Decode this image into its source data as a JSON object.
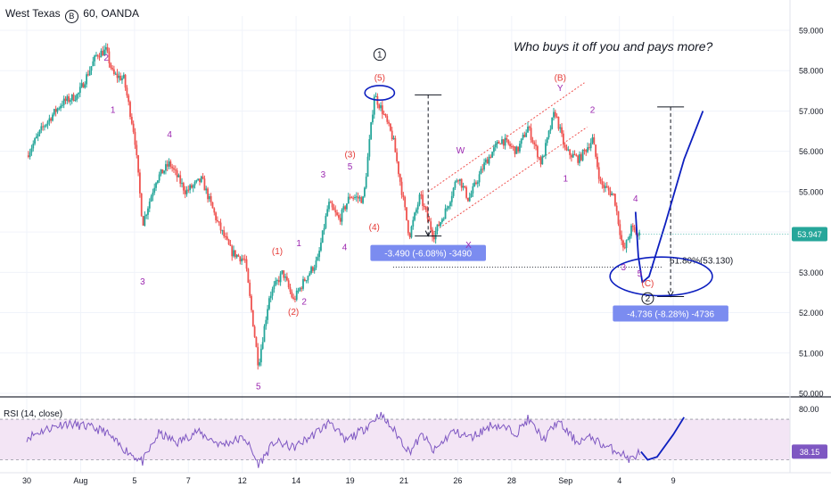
{
  "header": {
    "symbol": "West Texas",
    "icon": "b-circle-icon",
    "interval": "60",
    "source": "OANDA"
  },
  "annotation_text": "Who buys it off you and pays more?",
  "colors": {
    "up": "#26a69a",
    "down": "#ef5350",
    "wave_label": "#9c27b0",
    "corrective_label": "#e53935",
    "drawing": "#0d1fbf",
    "rsi_line": "#7e57c2",
    "rsi_band": "#f3e5f5",
    "last_price_bg": "#26a69a",
    "measure_bg": "#7b8cf0"
  },
  "chart_data": [
    {
      "type": "candlestick",
      "title": "",
      "xlabel": "",
      "ylabel": "",
      "ylim": [
        49.9,
        59.3
      ],
      "price_axis_ticks": [
        "59.000",
        "58.000",
        "57.000",
        "56.000",
        "55.000",
        "54.000",
        "53.000",
        "52.000",
        "51.000",
        "50.000"
      ],
      "time_axis_ticks": [
        "30",
        "Aug",
        "5",
        "7",
        "12",
        "14",
        "19",
        "21",
        "26",
        "28",
        "Sep",
        "4",
        "9"
      ],
      "last_price": "53.947",
      "path_anchors": [
        {
          "t": 0.0,
          "p": 55.9
        },
        {
          "t": 0.6,
          "p": 56.6
        },
        {
          "t": 1.3,
          "p": 57.2
        },
        {
          "t": 1.9,
          "p": 57.4
        },
        {
          "t": 2.6,
          "p": 58.4
        },
        {
          "t": 2.95,
          "p": 58.5
        },
        {
          "t": 3.2,
          "p": 57.9
        },
        {
          "t": 3.6,
          "p": 57.8
        },
        {
          "t": 4.0,
          "p": 56.4
        },
        {
          "t": 4.3,
          "p": 54.2
        },
        {
          "t": 4.8,
          "p": 55.3
        },
        {
          "t": 5.3,
          "p": 55.7
        },
        {
          "t": 5.9,
          "p": 55.0
        },
        {
          "t": 6.5,
          "p": 55.3
        },
        {
          "t": 7.1,
          "p": 54.2
        },
        {
          "t": 7.6,
          "p": 53.5
        },
        {
          "t": 8.1,
          "p": 53.3
        },
        {
          "t": 8.6,
          "p": 50.7
        },
        {
          "t": 9.0,
          "p": 52.4
        },
        {
          "t": 9.5,
          "p": 53.0
        },
        {
          "t": 9.9,
          "p": 52.3
        },
        {
          "t": 10.3,
          "p": 52.8
        },
        {
          "t": 10.8,
          "p": 53.3
        },
        {
          "t": 11.2,
          "p": 54.7
        },
        {
          "t": 11.6,
          "p": 54.3
        },
        {
          "t": 12.0,
          "p": 54.9
        },
        {
          "t": 12.5,
          "p": 54.8
        },
        {
          "t": 12.9,
          "p": 57.4
        },
        {
          "t": 13.2,
          "p": 57.0
        },
        {
          "t": 13.6,
          "p": 56.3
        },
        {
          "t": 14.2,
          "p": 53.9
        },
        {
          "t": 14.6,
          "p": 54.9
        },
        {
          "t": 15.1,
          "p": 53.9
        },
        {
          "t": 15.6,
          "p": 54.6
        },
        {
          "t": 16.0,
          "p": 55.4
        },
        {
          "t": 16.4,
          "p": 54.8
        },
        {
          "t": 17.0,
          "p": 55.7
        },
        {
          "t": 17.6,
          "p": 56.3
        },
        {
          "t": 18.2,
          "p": 56.0
        },
        {
          "t": 18.6,
          "p": 56.6
        },
        {
          "t": 19.1,
          "p": 55.7
        },
        {
          "t": 19.6,
          "p": 57.0
        },
        {
          "t": 20.0,
          "p": 56.0
        },
        {
          "t": 20.5,
          "p": 55.8
        },
        {
          "t": 21.0,
          "p": 56.3
        },
        {
          "t": 21.3,
          "p": 55.2
        },
        {
          "t": 21.8,
          "p": 54.9
        },
        {
          "t": 22.15,
          "p": 53.5
        },
        {
          "t": 22.45,
          "p": 54.1
        },
        {
          "t": 22.7,
          "p": 53.9
        },
        {
          "t": 22.78,
          "p": 53.95
        }
      ],
      "wave_labels": [
        {
          "text": "2",
          "t": 2.95,
          "p": 58.25,
          "style": "wave"
        },
        {
          "text": "1",
          "t": 3.2,
          "p": 56.95,
          "style": "wave"
        },
        {
          "text": "4",
          "t": 5.3,
          "p": 56.35,
          "style": "wave"
        },
        {
          "text": "3",
          "t": 4.3,
          "p": 52.7,
          "style": "wave"
        },
        {
          "text": "5",
          "t": 8.6,
          "p": 50.1,
          "style": "wave"
        },
        {
          "text": "(1)",
          "t": 9.3,
          "p": 53.45,
          "style": "corrective"
        },
        {
          "text": "(2)",
          "t": 9.9,
          "p": 51.95,
          "style": "corrective"
        },
        {
          "text": "1",
          "t": 10.1,
          "p": 53.65,
          "style": "wave"
        },
        {
          "text": "2",
          "t": 10.3,
          "p": 52.2,
          "style": "wave"
        },
        {
          "text": "3",
          "t": 11.0,
          "p": 55.35,
          "style": "wave"
        },
        {
          "text": "4",
          "t": 11.8,
          "p": 53.55,
          "style": "wave"
        },
        {
          "text": "(3)",
          "t": 12.0,
          "p": 55.85,
          "style": "corrective"
        },
        {
          "text": "5",
          "t": 12.0,
          "p": 55.55,
          "style": "wave"
        },
        {
          "text": "(4)",
          "t": 12.9,
          "p": 54.05,
          "style": "corrective"
        },
        {
          "text": "(5)",
          "t": 13.1,
          "p": 57.75,
          "style": "corrective"
        },
        {
          "text": "W",
          "t": 16.1,
          "p": 55.95,
          "style": "wave"
        },
        {
          "text": "X",
          "t": 16.4,
          "p": 53.6,
          "style": "wave"
        },
        {
          "text": "(B)",
          "t": 19.8,
          "p": 57.75,
          "style": "corrective"
        },
        {
          "text": "Y",
          "t": 19.8,
          "p": 57.5,
          "style": "wave"
        },
        {
          "text": "2",
          "t": 21.0,
          "p": 56.95,
          "style": "wave"
        },
        {
          "text": "1",
          "t": 20.0,
          "p": 55.25,
          "style": "wave"
        },
        {
          "text": "4",
          "t": 22.6,
          "p": 54.75,
          "style": "wave"
        },
        {
          "text": "3",
          "t": 22.15,
          "p": 53.05,
          "style": "wave"
        },
        {
          "text": "5",
          "t": 22.75,
          "p": 52.9,
          "style": "wave"
        },
        {
          "text": "(C)",
          "t": 23.05,
          "p": 52.65,
          "style": "corrective"
        }
      ],
      "circled_labels": [
        {
          "text": "1",
          "t": 13.1,
          "p": 58.4
        },
        {
          "text": "2",
          "t": 23.05,
          "p": 52.35
        }
      ],
      "measurements": [
        {
          "label": "-3.490 (-6.08%) -3490",
          "t": 14.9,
          "from": 57.4,
          "to": 53.9
        },
        {
          "label": "-4.736 (-8.28%) -4736",
          "t": 23.9,
          "from": 57.1,
          "to": 52.4
        }
      ],
      "fib_level": {
        "label": "61.80%(53.130)",
        "price": 53.13,
        "t_from": 13.6,
        "t_to": 23.6
      },
      "channel": {
        "upper": [
          {
            "t": 14.9,
            "p": 55.0
          },
          {
            "t": 20.7,
            "p": 57.7
          }
        ],
        "lower": [
          {
            "t": 15.1,
            "p": 54.0
          },
          {
            "t": 20.8,
            "p": 56.6
          }
        ]
      },
      "projection_path": [
        {
          "t": 22.6,
          "p": 54.5
        },
        {
          "t": 22.7,
          "p": 53.4
        },
        {
          "t": 22.85,
          "p": 52.75
        },
        {
          "t": 23.1,
          "p": 52.9
        },
        {
          "t": 23.7,
          "p": 54.2
        },
        {
          "t": 24.4,
          "p": 55.8
        },
        {
          "t": 25.1,
          "p": 57.0
        }
      ],
      "ellipses": [
        {
          "t": 13.1,
          "p": 57.45,
          "rt": 0.55,
          "rp": 0.18
        },
        {
          "t": 23.55,
          "p": 52.9,
          "rt": 1.9,
          "rp": 0.48
        }
      ]
    },
    {
      "type": "line",
      "title": "RSI (14, close)",
      "xlabel": "",
      "ylabel": "",
      "ylim": [
        20,
        90
      ],
      "band": [
        30,
        70
      ],
      "axis_ticks": [
        "80.00"
      ],
      "last_value": "38.15",
      "anchors": [
        {
          "t": 0.0,
          "v": 52
        },
        {
          "t": 0.7,
          "v": 60
        },
        {
          "t": 1.4,
          "v": 66
        },
        {
          "t": 2.2,
          "v": 63
        },
        {
          "t": 2.9,
          "v": 58
        },
        {
          "t": 3.4,
          "v": 45
        },
        {
          "t": 4.3,
          "v": 28
        },
        {
          "t": 4.9,
          "v": 56
        },
        {
          "t": 5.6,
          "v": 47
        },
        {
          "t": 6.3,
          "v": 58
        },
        {
          "t": 7.2,
          "v": 45
        },
        {
          "t": 8.1,
          "v": 52
        },
        {
          "t": 8.6,
          "v": 25
        },
        {
          "t": 9.2,
          "v": 48
        },
        {
          "t": 9.9,
          "v": 42
        },
        {
          "t": 10.6,
          "v": 54
        },
        {
          "t": 11.3,
          "v": 68
        },
        {
          "t": 11.8,
          "v": 48
        },
        {
          "t": 12.5,
          "v": 60
        },
        {
          "t": 13.1,
          "v": 75
        },
        {
          "t": 13.6,
          "v": 60
        },
        {
          "t": 14.2,
          "v": 38
        },
        {
          "t": 14.7,
          "v": 55
        },
        {
          "t": 15.1,
          "v": 38
        },
        {
          "t": 15.8,
          "v": 58
        },
        {
          "t": 16.5,
          "v": 52
        },
        {
          "t": 17.3,
          "v": 65
        },
        {
          "t": 18.2,
          "v": 57
        },
        {
          "t": 18.6,
          "v": 70
        },
        {
          "t": 19.2,
          "v": 50
        },
        {
          "t": 19.7,
          "v": 68
        },
        {
          "t": 20.4,
          "v": 48
        },
        {
          "t": 21.0,
          "v": 52
        },
        {
          "t": 21.4,
          "v": 44
        },
        {
          "t": 22.0,
          "v": 38
        },
        {
          "t": 22.4,
          "v": 30
        },
        {
          "t": 22.78,
          "v": 38
        }
      ],
      "projection_path": [
        {
          "t": 22.8,
          "v": 38
        },
        {
          "t": 23.05,
          "v": 30
        },
        {
          "t": 23.4,
          "v": 33
        },
        {
          "t": 24.0,
          "v": 55
        },
        {
          "t": 24.4,
          "v": 72
        }
      ]
    }
  ]
}
